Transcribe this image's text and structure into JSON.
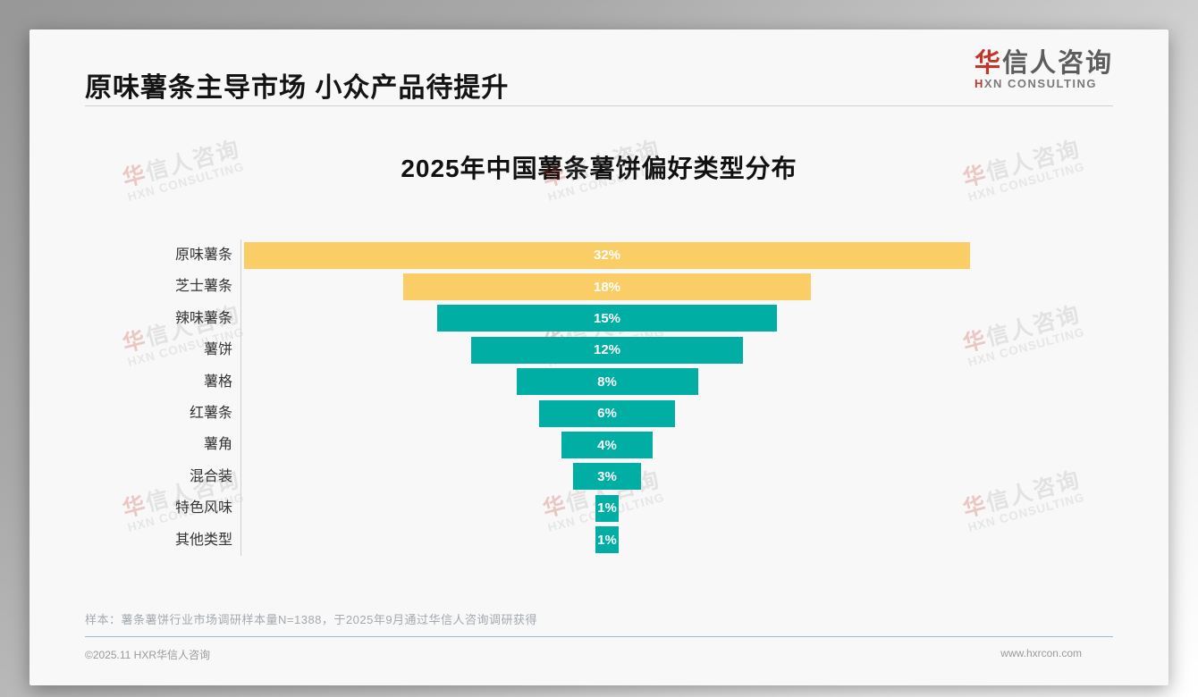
{
  "header": {
    "title": "原味薯条主导市场 小众产品待提升"
  },
  "logo": {
    "zh_first": "华",
    "zh_rest": "信人咨询",
    "en_first": "H",
    "en_rest": "XN CONSULTING",
    "accent_color": "#c3342b"
  },
  "watermark": {
    "zh_first": "华",
    "zh_rest": "信人咨询",
    "en": "HXN CONSULTING"
  },
  "chart_data": {
    "type": "bar",
    "subtype": "horizontal-centered-funnel",
    "title": "2025年中国薯条薯饼偏好类型分布",
    "categories": [
      "原味薯条",
      "芝士薯条",
      "辣味薯条",
      "薯饼",
      "薯格",
      "红薯条",
      "薯角",
      "混合装",
      "特色风味",
      "其他类型"
    ],
    "values": [
      32,
      18,
      15,
      12,
      8,
      6,
      4,
      3,
      1,
      1
    ],
    "value_labels": [
      "32%",
      "18%",
      "15%",
      "12%",
      "8%",
      "6%",
      "4%",
      "3%",
      "1%",
      "1%"
    ],
    "unit": "%",
    "bar_colors": [
      "#FACD66",
      "#FACD66",
      "#00AEA4",
      "#00AEA4",
      "#00AEA4",
      "#00AEA4",
      "#00AEA4",
      "#00AEA4",
      "#00AEA4",
      "#00AEA4"
    ],
    "colors": {
      "highlight_yellow": "#FACD66",
      "teal": "#00AEA4"
    },
    "legend": "none",
    "grid": "off",
    "axis": "left vertical line only",
    "xlim": [
      0,
      32
    ]
  },
  "note": {
    "text": "样本：薯条薯饼行业市场调研样本量N=1388，于2025年9月通过华信人咨询调研获得"
  },
  "footer": {
    "copyright": "©2025.11 HXR华信人咨询",
    "website": "www.hxrcon.com"
  }
}
